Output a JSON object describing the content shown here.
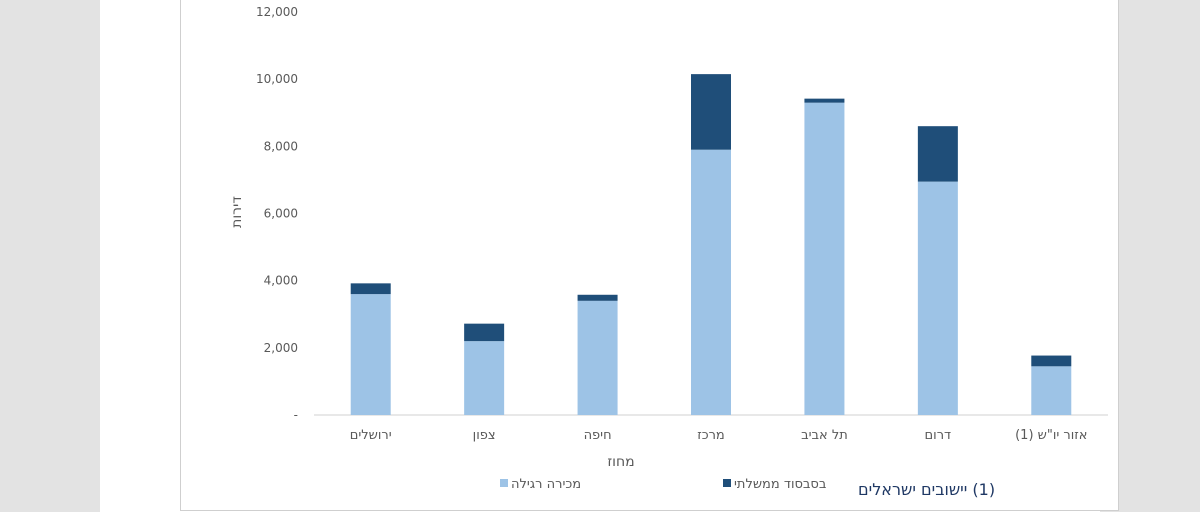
{
  "chart_data": {
    "type": "bar",
    "stacked": true,
    "categories": [
      "ירושלים",
      "צפון",
      "חיפה",
      "מרכז",
      "תל אביב",
      "דרום",
      "אזור יו\"ש (1)"
    ],
    "series": [
      {
        "name": "מכירה רגילה",
        "color": "#9dc3e6",
        "values": [
          3600,
          2200,
          3400,
          7900,
          9300,
          6950,
          1450
        ]
      },
      {
        "name": "בסבסוד ממשלתי",
        "color": "#1f4e79",
        "values": [
          320,
          520,
          180,
          2250,
          120,
          1650,
          320
        ]
      }
    ],
    "yticks": [
      "-",
      "2,000",
      "4,000",
      "6,000",
      "8,000",
      "10,000",
      "12,000"
    ],
    "ylim": [
      0,
      12000
    ],
    "xlabel": "מחוז",
    "ylabel": "דירות",
    "grid": false,
    "legend_position": "bottom"
  },
  "footnote": "(1) יישובים ישראלים"
}
